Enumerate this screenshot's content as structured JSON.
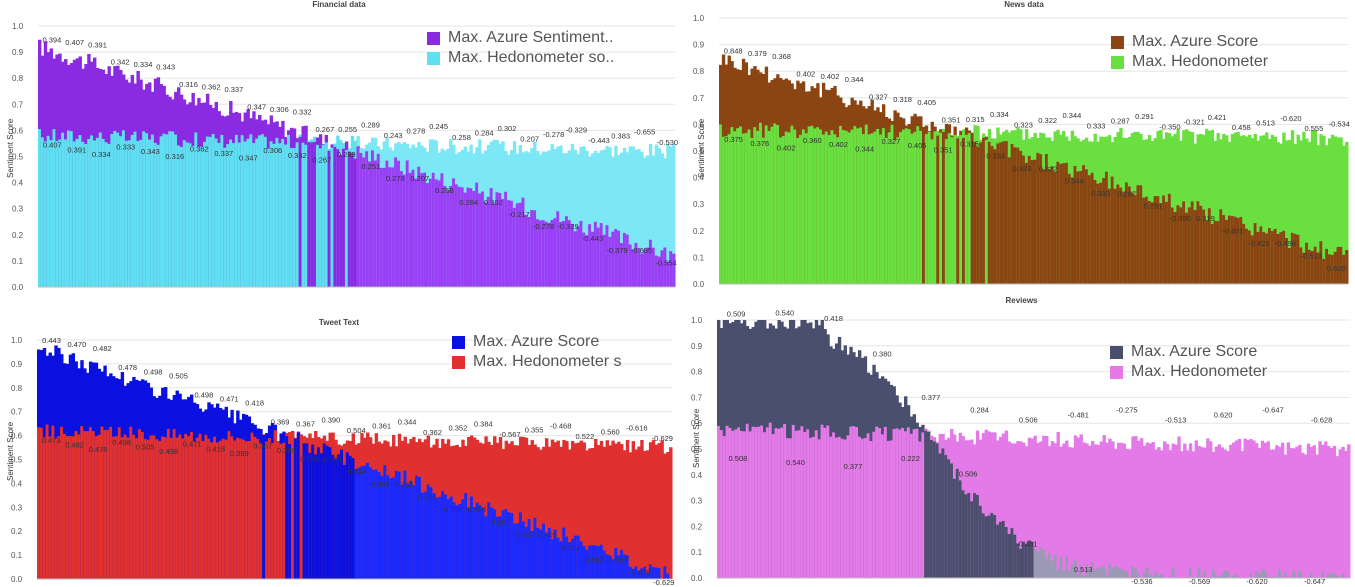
{
  "chart_data": [
    {
      "type": "bar",
      "title": "Financial data",
      "ylabel": "Sentiment Score",
      "ylim": [
        0,
        1.0
      ],
      "yticks": [
        "0.0",
        "0.1",
        "0.2",
        "0.3",
        "0.4",
        "0.5",
        "0.6",
        "0.7",
        "0.8",
        "0.9",
        "1.0"
      ],
      "grid": true,
      "legend_position": "top-right",
      "series": [
        {
          "name": "Max. Azure Sentiment..",
          "color": "#8a2be2",
          "color_end": "#9a3ff5",
          "trend": {
            "start": 0.92,
            "end": 0.12
          }
        },
        {
          "name": "Max. Hedonometer so..",
          "color": "#5fe0f0",
          "color_end": "#7de8f5",
          "trend": {
            "start": 0.58,
            "end": 0.52
          }
        }
      ],
      "labels_top": [
        "0.394",
        "0.407",
        "0.391",
        "0.342",
        "0.334",
        "0.343",
        "0.316",
        "0.362",
        "0.337",
        "0.347",
        "0.306",
        "0.332",
        "0.267",
        "0.255",
        "0.289",
        "0.243",
        "0.278",
        "0.245",
        "0.258",
        "0.284",
        "0.302",
        "0.207",
        "-0.278",
        "-0.329",
        "-0.443",
        "0.383",
        "-0.655",
        "-0.530"
      ],
      "labels_bottom": [
        "0.407",
        "0.391",
        "0.334",
        "0.333",
        "0.343",
        "0.316",
        "0.362",
        "0.337",
        "0.347",
        "0.306",
        "0.332",
        "0.267",
        "0.289",
        "0.251",
        "0.278",
        "0.207",
        "0.258",
        "0.284",
        "0.302",
        "-0.217",
        "-0.278",
        "-0.329",
        "-0.443",
        "-0.379",
        "-0.655",
        "-0.554"
      ]
    },
    {
      "type": "bar",
      "title": "News data",
      "ylabel": "Sentiment Score",
      "ylim": [
        0,
        1.0
      ],
      "yticks": [
        "0.0",
        "0.1",
        "0.2",
        "0.3",
        "0.4",
        "0.5",
        "0.6",
        "0.7",
        "0.8",
        "0.9",
        "1.0"
      ],
      "grid": true,
      "legend_position": "top-right",
      "series": [
        {
          "name": "Max. Azure Score",
          "color": "#8b4513",
          "color_end": "#8b4513",
          "trend": {
            "start": 0.85,
            "end": 0.1
          }
        },
        {
          "name": "Max. Hedonometer",
          "color": "#6ae040",
          "color_end": "#6ae040",
          "trend": {
            "start": 0.58,
            "end": 0.55
          }
        }
      ],
      "labels_top": [
        "0.848",
        "0.379",
        "0.368",
        "0.402",
        "0.402",
        "0.344",
        "0.327",
        "0.318",
        "0.405",
        "0.351",
        "0.315",
        "0.334",
        "0.323",
        "0.322",
        "0.344",
        "0.333",
        "0.287",
        "0.291",
        "-0.350",
        "-0.321",
        "0.421",
        "0.458",
        "0.513",
        "-0.620",
        "0.555",
        "-0.534"
      ],
      "labels_bottom": [
        "0.375",
        "0.376",
        "0.402",
        "0.360",
        "0.402",
        "0.344",
        "0.327",
        "0.405",
        "0.351",
        "0.315",
        "0.334",
        "0.323",
        "0.322",
        "0.344",
        "0.333",
        "0.287",
        "0.291",
        "-0.350",
        "0.319",
        "-0.401",
        "-0.421",
        "-0.498",
        "-0.513",
        "0.620"
      ]
    },
    {
      "type": "bar",
      "title": "Tweet Text",
      "ylabel": "Sentiment Score",
      "ylim": [
        0,
        1.0
      ],
      "yticks": [
        "0.0",
        "0.1",
        "0.2",
        "0.3",
        "0.4",
        "0.5",
        "0.6",
        "0.7",
        "0.8",
        "0.9",
        "1.0"
      ],
      "grid": true,
      "legend_position": "top-right",
      "series": [
        {
          "name": "Max. Azure Score",
          "color": "#0a10e0",
          "color_end": "#1a2aff",
          "trend": {
            "start": 0.97,
            "end": 0.02
          }
        },
        {
          "name": "Max. Hedonometer s",
          "color": "#e03030",
          "color_end": "#e03030",
          "trend": {
            "start": 0.62,
            "end": 0.55
          }
        }
      ],
      "labels_top": [
        "0.443",
        "0.470",
        "0.482",
        "0.478",
        "0.498",
        "0.505",
        "0.498",
        "0.471",
        "0.418",
        "0.369",
        "0.367",
        "0.390",
        "0.504",
        "0.361",
        "0.344",
        "0.362",
        "0.352",
        "0.384",
        "-0.567",
        "0.355",
        "-0.468",
        "0.522",
        "0.560",
        "-0.616",
        "-0.629"
      ],
      "labels_bottom": [
        "0.473",
        "0.482",
        "0.478",
        "0.498",
        "0.505",
        "0.498",
        "0.471",
        "0.418",
        "0.369",
        "0.367",
        "0.390",
        "0.504",
        "0.361",
        "0.344",
        "0.362",
        "0.352",
        "0.384",
        "-0.296",
        "-0.355",
        "-0.567",
        "-0.422",
        "-0.505",
        "-0.522",
        "-0.562",
        "-0.597",
        "-0.625",
        "-0.629"
      ]
    },
    {
      "type": "bar",
      "title": "Reviews",
      "ylabel": "Sentiment Score",
      "ylim": [
        0,
        1.0
      ],
      "yticks": [
        "0.0",
        "0.1",
        "0.2",
        "0.3",
        "0.4",
        "0.5",
        "0.6",
        "0.7",
        "0.8",
        "0.9",
        "1.0"
      ],
      "grid": true,
      "legend_position": "top-right",
      "series": [
        {
          "name": "Max. Azure Score",
          "color": "#4a4f6e",
          "color_end": "#9a9ab5",
          "trend": {
            "start": 1.0,
            "end": 0.0
          }
        },
        {
          "name": "Max. Hedonometer",
          "color": "#e37ae8",
          "color_end": "#e37ae8",
          "trend": {
            "start": 0.58,
            "end": 0.5
          }
        }
      ],
      "labels_top": [
        "0.509",
        "0.540",
        "0.418",
        "0.380",
        "0.377",
        "0.284",
        "0.506",
        "-0.481",
        "-0.275",
        "-0.513",
        "0.620",
        "-0.647",
        "-0.628"
      ],
      "labels_bottom": [
        "0.508",
        "0.540",
        "0.377",
        "0.222",
        "0.506",
        "-0.481",
        "0.513",
        "-0.536",
        "-0.569",
        "-0.620",
        "-0.647"
      ]
    }
  ]
}
